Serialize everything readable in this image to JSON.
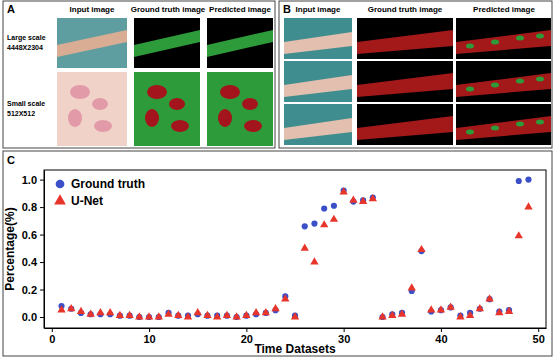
{
  "panels": [
    {
      "label": "A",
      "columns": [
        "Input image",
        "Ground truth image",
        "Predicted image"
      ],
      "rows": [
        {
          "label": "Large scale",
          "size": "4448X2304"
        },
        {
          "label": "Small scale",
          "size": "512X512"
        }
      ]
    },
    {
      "label": "B",
      "columns": [
        "Input image",
        "Ground truth image",
        "Predicted image"
      ]
    }
  ],
  "chart_data": {
    "type": "scatter",
    "panel_label": "C",
    "x_label": "Time Datasets",
    "y_label": "Percentage(%)",
    "x": [
      1,
      2,
      3,
      4,
      5,
      6,
      7,
      8,
      9,
      10,
      11,
      12,
      13,
      14,
      15,
      16,
      17,
      18,
      19,
      20,
      21,
      22,
      23,
      24,
      25,
      26,
      27,
      28,
      29,
      30,
      31,
      32,
      33,
      34,
      35,
      36,
      37,
      38,
      39,
      40,
      41,
      42,
      43,
      44,
      45,
      46,
      47,
      48,
      49
    ],
    "series": [
      {
        "name": "Ground truth",
        "color": "#3b4fc8",
        "marker": "circle",
        "values": [
          0.08,
          0.06,
          0.03,
          0.02,
          0.02,
          0.02,
          0.01,
          0.01,
          0.0,
          0.0,
          0.0,
          0.03,
          0.01,
          0.01,
          0.02,
          0.01,
          0.01,
          0.01,
          0.0,
          0.01,
          0.02,
          0.03,
          0.05,
          0.15,
          0.01,
          0.66,
          0.68,
          0.79,
          0.81,
          0.92,
          0.84,
          0.85,
          0.87,
          0.0,
          0.02,
          0.03,
          0.19,
          0.48,
          0.04,
          0.05,
          0.07,
          0.01,
          0.03,
          0.06,
          0.13,
          0.04,
          0.05,
          0.99,
          1.0
        ]
      },
      {
        "name": "U-Net",
        "color": "#e8352b",
        "marker": "triangle",
        "values": [
          0.05,
          0.06,
          0.04,
          0.02,
          0.03,
          0.03,
          0.01,
          0.01,
          0.0,
          0.0,
          0.0,
          0.02,
          0.01,
          0.0,
          0.03,
          0.01,
          0.0,
          0.01,
          0.0,
          0.01,
          0.03,
          0.03,
          0.06,
          0.13,
          0.0,
          0.5,
          0.4,
          0.67,
          0.71,
          0.91,
          0.85,
          0.84,
          0.86,
          0.0,
          0.01,
          0.02,
          0.21,
          0.49,
          0.05,
          0.05,
          0.07,
          0.0,
          0.01,
          0.06,
          0.13,
          0.03,
          0.04,
          0.59,
          0.8
        ]
      }
    ],
    "xlim": [
      -0.8,
      50.8
    ],
    "ylim": [
      -0.08,
      1.07
    ],
    "xticks": [
      0,
      10,
      20,
      30,
      40,
      50
    ],
    "yticks": [
      {
        "value": 0,
        "label": "0.0"
      },
      0.2,
      0.4,
      0.6,
      0.8,
      {
        "value": 1,
        "label": "1.0"
      }
    ],
    "legend": "upper left"
  }
}
